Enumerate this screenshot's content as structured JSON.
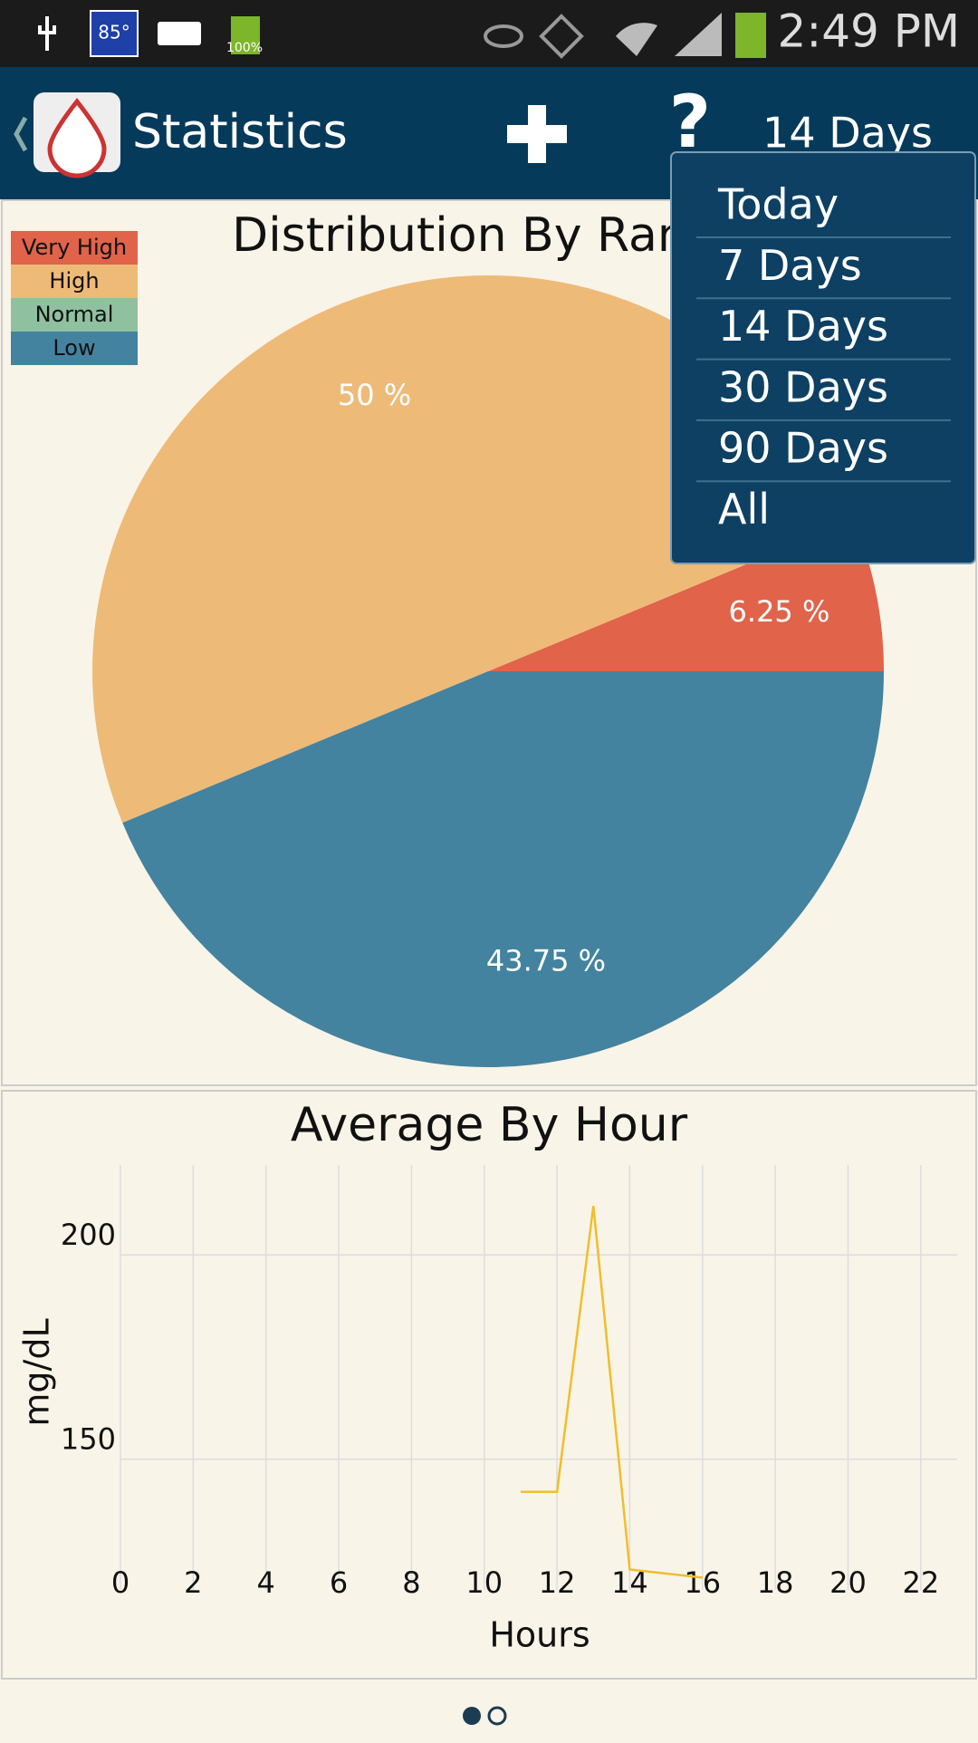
{
  "status_bar": {
    "temperature": "85°",
    "battery": "100%",
    "time": "2:49 PM"
  },
  "app_bar": {
    "title": "Statistics",
    "help": "?",
    "period": "14 Days"
  },
  "menu": {
    "items": [
      "Today",
      "7 Days",
      "14 Days",
      "30 Days",
      "90 Days",
      "All"
    ]
  },
  "chart_data": [
    {
      "type": "pie",
      "title": "Distribution By Range",
      "categories": [
        "Very High",
        "High",
        "Normal",
        "Low"
      ],
      "values": [
        6.25,
        50,
        0,
        43.75
      ],
      "value_labels": [
        "6.25 %",
        "50 %",
        null,
        "43.75 %"
      ],
      "colors": [
        "#e0634a",
        "#eeba78",
        "#8fc1a0",
        "#43839f"
      ]
    },
    {
      "type": "line",
      "title": "Average By Hour",
      "x_label": "Hours",
      "y_label": "mg/dL",
      "x": [
        11,
        12,
        13,
        14,
        16
      ],
      "values": [
        142,
        142,
        212,
        123,
        121
      ],
      "color": "#f2bd2c",
      "xlim": [
        0,
        23
      ],
      "ylim": [
        118,
        222
      ],
      "xticks": [
        0,
        2,
        4,
        6,
        8,
        10,
        12,
        14,
        16,
        18,
        20,
        22
      ],
      "yticks": [
        150,
        200
      ],
      "grid": true
    }
  ]
}
